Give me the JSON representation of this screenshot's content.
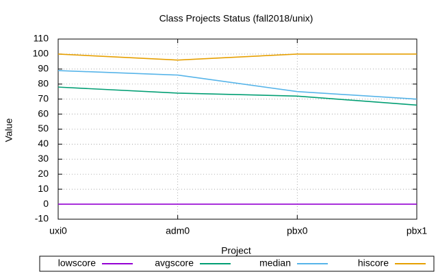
{
  "chart_data": {
    "type": "line",
    "title": "Class Projects Status (fall2018/unix)",
    "x_label": "Project",
    "y_label": "Value",
    "categories": [
      "uxi0",
      "adm0",
      "pbx0",
      "pbx1"
    ],
    "series": [
      {
        "name": "lowscore",
        "color": "#9400d3",
        "values": [
          0,
          0,
          0,
          0
        ]
      },
      {
        "name": "avgscore",
        "color": "#009e73",
        "values": [
          78,
          74,
          72,
          66
        ]
      },
      {
        "name": "median",
        "color": "#56b4e9",
        "values": [
          89,
          86,
          75,
          70
        ]
      },
      {
        "name": "hiscore",
        "color": "#e69f00",
        "values": [
          100,
          96,
          100,
          100
        ]
      }
    ],
    "ylim": [
      -10,
      110
    ],
    "yticks": [
      -10,
      0,
      10,
      20,
      30,
      40,
      50,
      60,
      70,
      80,
      90,
      100,
      110
    ],
    "grid": true,
    "legend": "bottom"
  }
}
